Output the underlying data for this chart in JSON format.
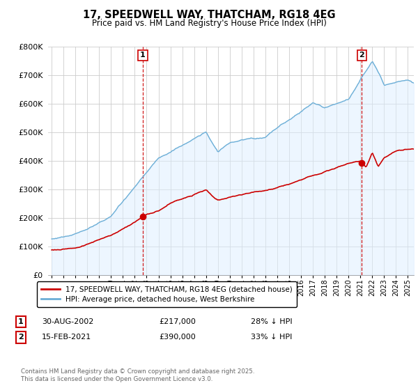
{
  "title_line1": "17, SPEEDWELL WAY, THATCHAM, RG18 4EG",
  "title_line2": "Price paid vs. HM Land Registry's House Price Index (HPI)",
  "hpi_color": "#6baed6",
  "hpi_fill_color": "#ddeeff",
  "price_color": "#cc0000",
  "vline_color": "#cc0000",
  "background_color": "#ffffff",
  "grid_color": "#cccccc",
  "ylim": [
    0,
    800000
  ],
  "yticks": [
    0,
    100000,
    200000,
    300000,
    400000,
    500000,
    600000,
    700000,
    800000
  ],
  "xlim_start": 1994.7,
  "xlim_end": 2025.5,
  "legend_entries": [
    "17, SPEEDWELL WAY, THATCHAM, RG18 4EG (detached house)",
    "HPI: Average price, detached house, West Berkshire"
  ],
  "annotation1": {
    "num": "1",
    "x": 2002.67,
    "date": "30-AUG-2002",
    "price": "£217,000",
    "pct": "28% ↓ HPI"
  },
  "annotation2": {
    "num": "2",
    "x": 2021.12,
    "date": "15-FEB-2021",
    "price": "£390,000",
    "pct": "33% ↓ HPI"
  },
  "footer": "Contains HM Land Registry data © Crown copyright and database right 2025.\nThis data is licensed under the Open Government Licence v3.0."
}
